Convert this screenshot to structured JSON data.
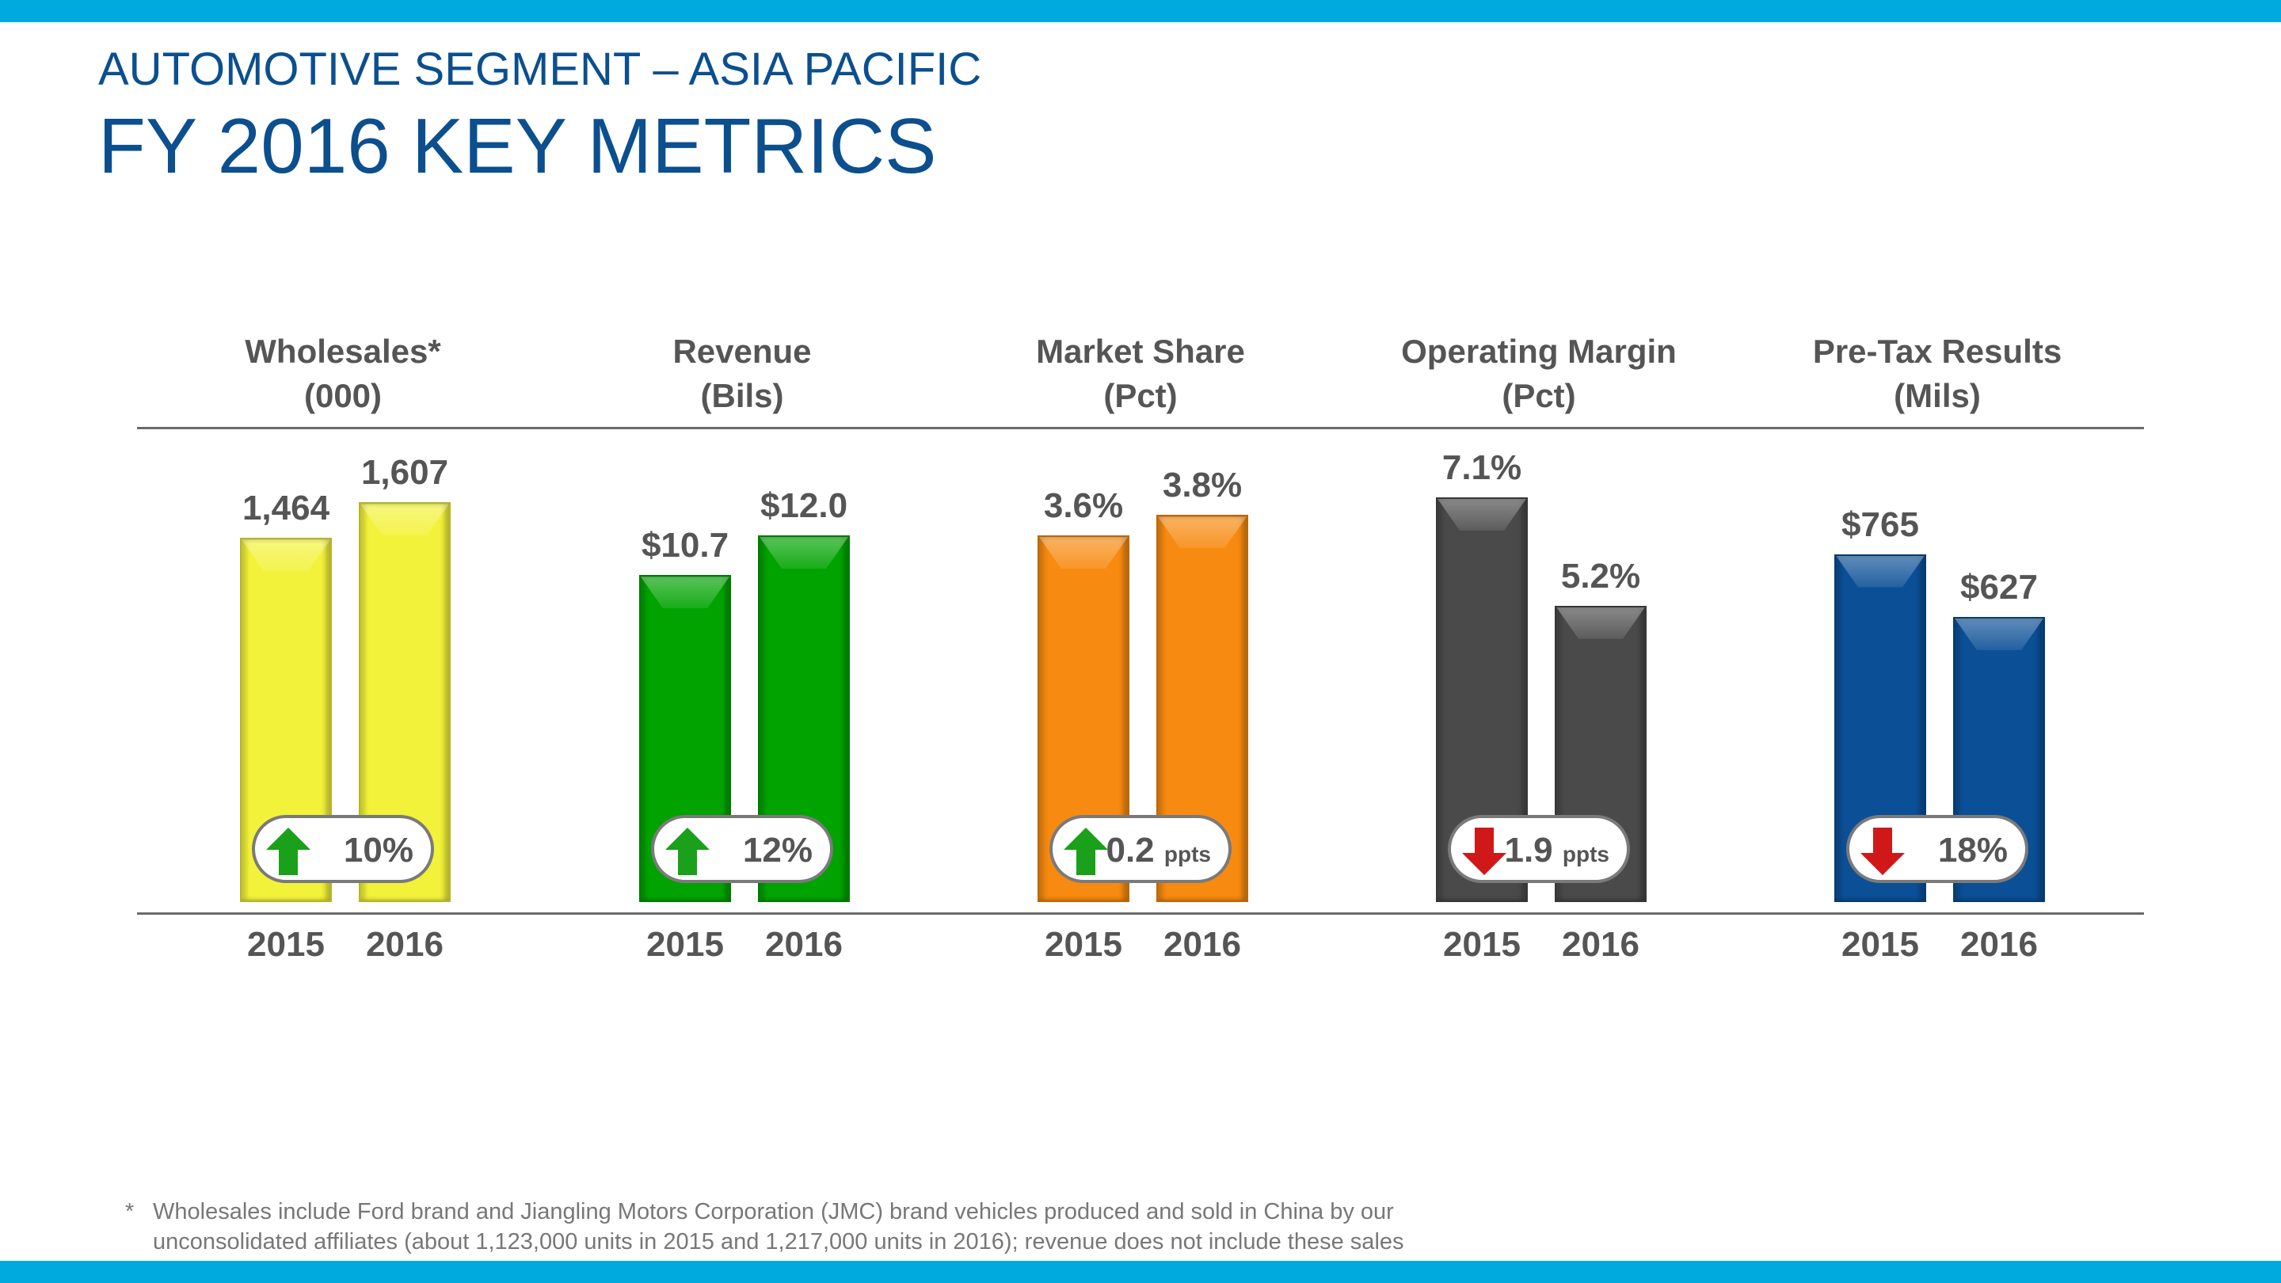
{
  "header": {
    "subtitle": "AUTOMOTIVE SEGMENT – ASIA PACIFIC",
    "title": "FY 2016 KEY METRICS"
  },
  "colors": {
    "accent_bar": "#00aadf",
    "title": "#0b4f8f",
    "up_arrow": "#1aa01a",
    "down_arrow": "#d01818"
  },
  "chart_data": [
    {
      "type": "bar",
      "title": "Wholesales*",
      "subtitle": "(000)",
      "categories": [
        "2015",
        "2016"
      ],
      "values": [
        1464,
        1607
      ],
      "labels": [
        "1,464",
        "1,607"
      ],
      "ylim": [
        0,
        1720
      ],
      "color": "#f2f23a",
      "change": {
        "direction": "up",
        "value": "10%",
        "unit": ""
      }
    },
    {
      "type": "bar",
      "title": "Revenue",
      "subtitle": "(Bils)",
      "categories": [
        "2015",
        "2016"
      ],
      "values": [
        10.7,
        12.0
      ],
      "labels": [
        "$10.7",
        "$12.0"
      ],
      "ylim": [
        0,
        14
      ],
      "color": "#00a300",
      "change": {
        "direction": "up",
        "value": "12%",
        "unit": ""
      }
    },
    {
      "type": "bar",
      "title": "Market Share",
      "subtitle": "(Pct)",
      "categories": [
        "2015",
        "2016"
      ],
      "values": [
        3.6,
        3.8
      ],
      "labels": [
        "3.6%",
        "3.8%"
      ],
      "ylim": [
        0,
        4.2
      ],
      "color": "#f78a10",
      "change": {
        "direction": "up",
        "value": "0.2",
        "unit": "ppts"
      }
    },
    {
      "type": "bar",
      "title": "Operating Margin",
      "subtitle": "(Pct)",
      "categories": [
        "2015",
        "2016"
      ],
      "values": [
        7.1,
        5.2
      ],
      "labels": [
        "7.1%",
        "5.2%"
      ],
      "ylim": [
        0,
        7.5
      ],
      "color": "#4a4a4a",
      "change": {
        "direction": "down",
        "value": "1.9",
        "unit": "ppts"
      }
    },
    {
      "type": "bar",
      "title": "Pre-Tax Results",
      "subtitle": "(Mils)",
      "categories": [
        "2015",
        "2016"
      ],
      "values": [
        765,
        627
      ],
      "labels": [
        "$765",
        "$627"
      ],
      "ylim": [
        0,
        940
      ],
      "color": "#0b4f96",
      "change": {
        "direction": "down",
        "value": "18%",
        "unit": ""
      }
    }
  ],
  "footnote": {
    "marker": "*",
    "line1": "Wholesales include Ford brand and Jiangling Motors Corporation (JMC) brand vehicles produced and sold in China by our",
    "line2": "unconsolidated affiliates (about 1,123,000 units in 2015 and 1,217,000 units in 2016); revenue does not include these sales"
  }
}
